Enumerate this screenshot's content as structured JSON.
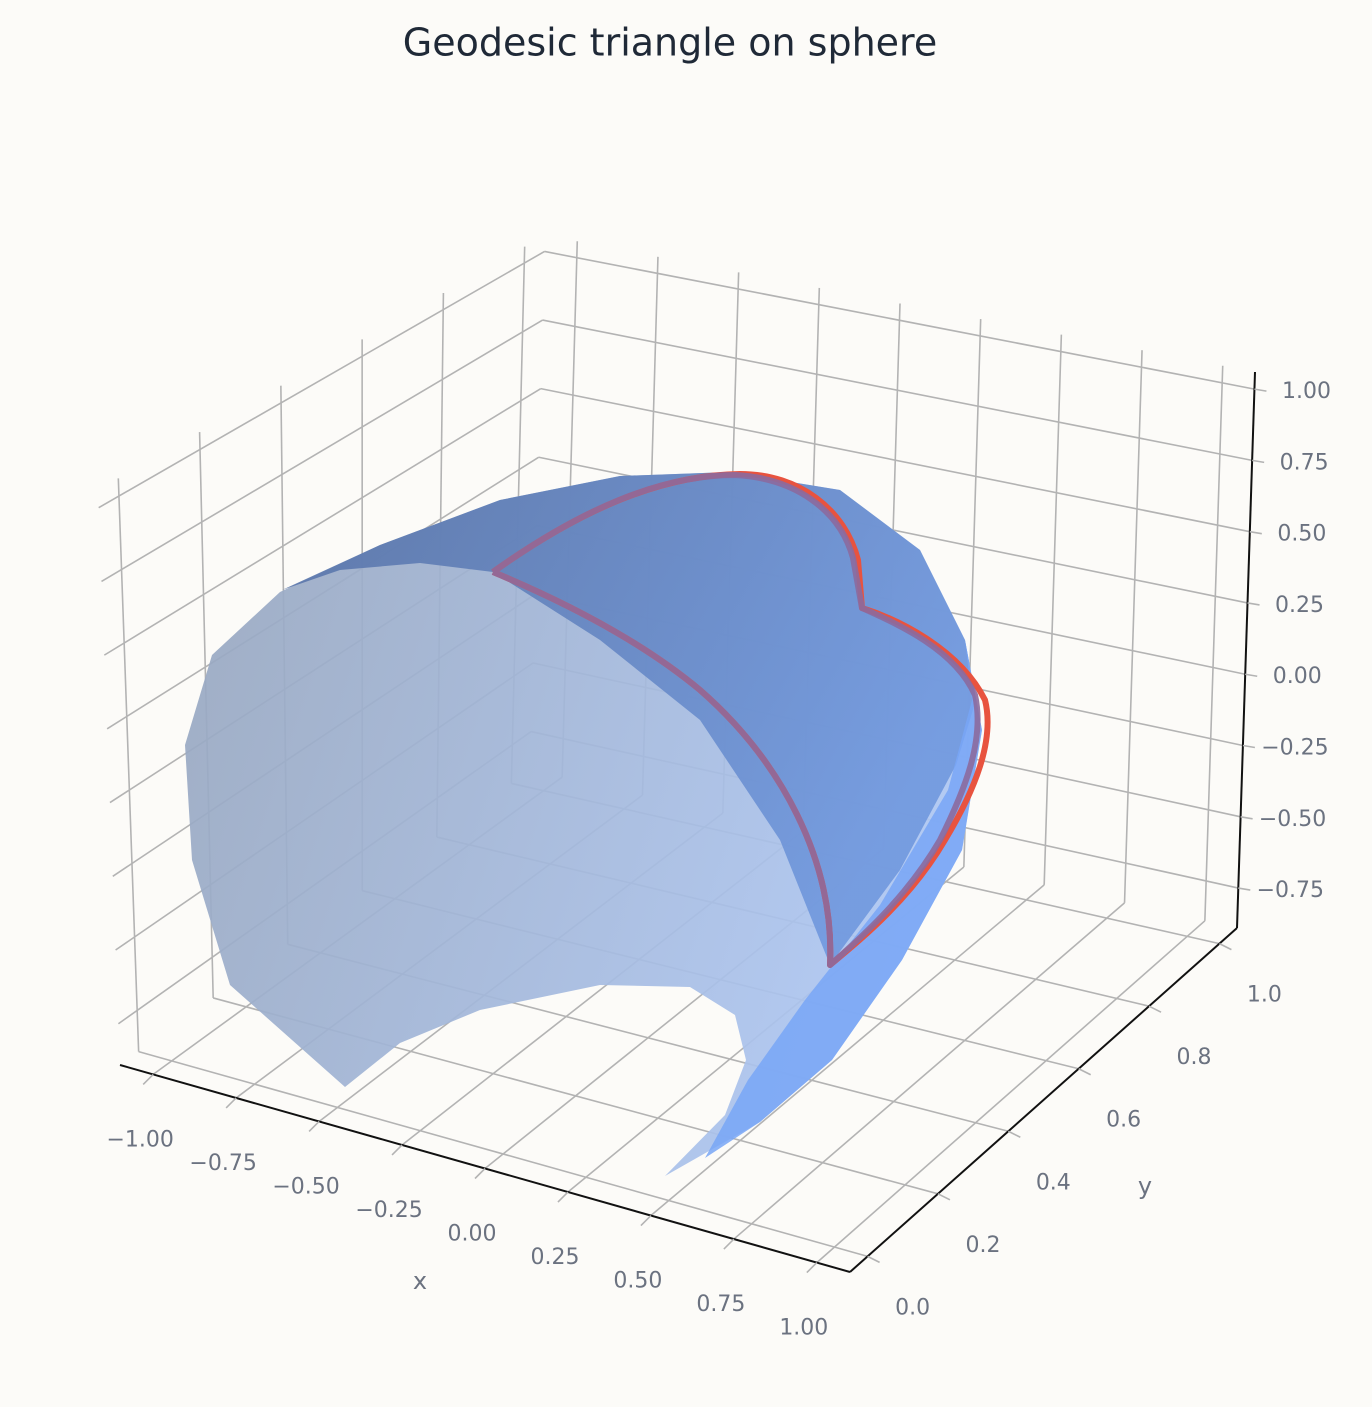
{
  "chart_data": {
    "type": "surface3d",
    "title": "Geodesic triangle on sphere",
    "xlabel": "x",
    "ylabel": "y",
    "xlim": [
      -1.1,
      1.1
    ],
    "ylim": [
      -0.05,
      1.05
    ],
    "zlim": [
      -0.89,
      1.06
    ],
    "xticks": [
      {
        "value": -1,
        "label": "−1.00"
      },
      {
        "value": -0.75,
        "label": "−0.75"
      },
      {
        "value": -0.5,
        "label": "−0.50"
      },
      {
        "value": -0.25,
        "label": "−0.25"
      },
      {
        "value": 0,
        "label": "0.00"
      },
      0.25,
      {
        "value": 0.5,
        "label": "0.50"
      },
      0.75,
      {
        "value": 1,
        "label": "1.00"
      }
    ],
    "yticks": [
      {
        "value": 0,
        "label": "0.0"
      },
      0.2,
      0.4,
      0.6,
      0.8,
      {
        "value": 1,
        "label": "1.0"
      }
    ],
    "zticks": [
      {
        "value": -0.75,
        "label": "−0.75"
      },
      {
        "value": -0.5,
        "label": "−0.50"
      },
      {
        "value": -0.25,
        "label": "−0.25"
      },
      {
        "value": 0,
        "label": "0.00"
      },
      0.25,
      {
        "value": 0.5,
        "label": "0.50"
      },
      0.75,
      {
        "value": 1,
        "label": "1.00"
      }
    ],
    "grid": true
  }
}
